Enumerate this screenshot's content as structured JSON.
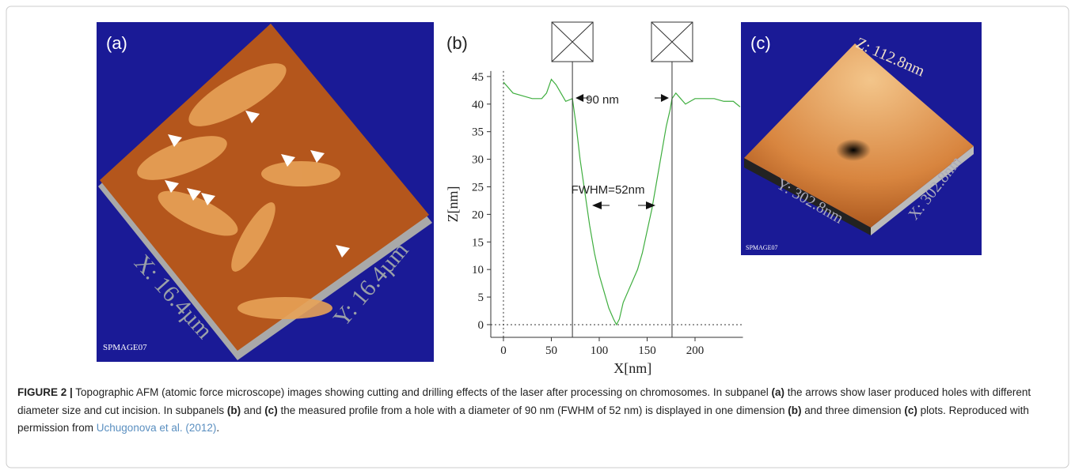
{
  "panels": [
    {
      "label": "(a)",
      "texts": [
        "X: 16.4µm",
        "Y: 16.4µm",
        "SPMAGE07"
      ]
    },
    {
      "label": "(b)"
    },
    {
      "label": "(c)",
      "texts": [
        "Z: 112.8nm",
        "Y: 302.8nm",
        "X: 302.8nm",
        "SPMAGE07"
      ]
    }
  ],
  "chart_data": {
    "type": "line",
    "xlabel": "X[nm]",
    "ylabel": "Z[nm]",
    "color": "#3fae3f",
    "x": [
      0,
      10,
      20,
      30,
      40,
      45,
      50,
      55,
      60,
      65,
      72,
      76,
      80,
      85,
      90,
      95,
      100,
      105,
      110,
      115,
      118,
      121,
      125,
      130,
      135,
      140,
      145,
      150,
      155,
      160,
      165,
      170,
      174,
      176,
      180,
      185,
      190,
      200,
      210,
      220,
      230,
      240,
      247
    ],
    "values": [
      44,
      42,
      41.5,
      41,
      41,
      42,
      44.5,
      43.5,
      42,
      40.5,
      41,
      36,
      30,
      24,
      18,
      13,
      9,
      6,
      3,
      1,
      0,
      1,
      4,
      6,
      8,
      10,
      13,
      17,
      21,
      26,
      31,
      36,
      39,
      41,
      42,
      41,
      40,
      41,
      41,
      41,
      40.5,
      40.5,
      39.5
    ],
    "xlim": [
      -13.2,
      250
    ],
    "ylim": [
      -2.3,
      46
    ],
    "xticks": [
      0,
      50,
      100,
      150,
      200
    ],
    "yticks": [
      0,
      5,
      10,
      15,
      20,
      25,
      30,
      35,
      40,
      45
    ],
    "vlines": [
      72,
      176
    ],
    "annotations": [
      "90 nm",
      "FWHM=52nm"
    ]
  },
  "caption": {
    "parts": [
      "FIGURE 2 |",
      " Topographic AFM (atomic force microscope) images showing cutting and drilling effects of the laser after processing on chromosomes. In subpanel ",
      "(a)",
      " the arrows show laser produced holes with different diameter size and cut incision. In subpanels ",
      "(b)",
      " and ",
      "(c)",
      " the measured profile from a hole with a diameter of 90 nm (FWHM of 52 nm) is displayed in one dimension ",
      "(b)",
      " and three dimension ",
      "(c)",
      " plots. Reproduced with permission from ",
      "Uchugonova et al. (2012)",
      "."
    ]
  }
}
